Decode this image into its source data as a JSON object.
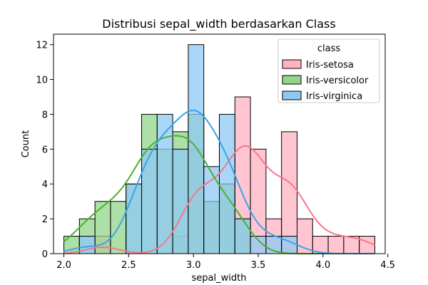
{
  "chart_data": {
    "type": "histogram",
    "title": "Distribusi sepal_width berdasarkan Class",
    "xlabel": "sepal_width",
    "ylabel": "Count",
    "xlim": [
      1.92,
      4.48
    ],
    "ylim": [
      0,
      12.6
    ],
    "x_ticks": [
      2.0,
      2.5,
      3.0,
      3.5,
      4.0,
      4.5
    ],
    "x_tick_labels": [
      "2.0",
      "2.5",
      "3.0",
      "3.5",
      "4.0",
      "4.5"
    ],
    "y_ticks": [
      0,
      2,
      4,
      6,
      8,
      10,
      12
    ],
    "y_tick_labels": [
      "0",
      "2",
      "4",
      "6",
      "8",
      "10",
      "12"
    ],
    "bin_edges": [
      2.0,
      2.12,
      2.24,
      2.36,
      2.48,
      2.6,
      2.72,
      2.84,
      2.96,
      3.08,
      3.2,
      3.32,
      3.44,
      3.56,
      3.68,
      3.8,
      3.92,
      4.04,
      4.16,
      4.28,
      4.4
    ],
    "kde": true,
    "legend": {
      "title": "class",
      "position": "upper right"
    },
    "series": [
      {
        "name": "Iris-setosa",
        "color": "#f7768e",
        "fill": "#ffb3c1",
        "counts": [
          0,
          0,
          1,
          0,
          0,
          0,
          0,
          1,
          6,
          3,
          4,
          9,
          6,
          2,
          7,
          2,
          1,
          1,
          1,
          1
        ]
      },
      {
        "name": "Iris-versicolor",
        "color": "#4daf32",
        "fill": "#92d68a",
        "counts": [
          1,
          2,
          3,
          3,
          4,
          8,
          6,
          7,
          8,
          3,
          4,
          2,
          0,
          0,
          0,
          0,
          0,
          0,
          0,
          0
        ]
      },
      {
        "name": "Iris-virginica",
        "color": "#3ba3e8",
        "fill": "#8ec9f4",
        "counts": [
          0,
          1,
          0,
          0,
          4,
          6,
          8,
          6,
          12,
          5,
          8,
          2,
          1,
          1,
          1,
          0,
          0,
          0,
          0,
          0
        ]
      }
    ]
  }
}
